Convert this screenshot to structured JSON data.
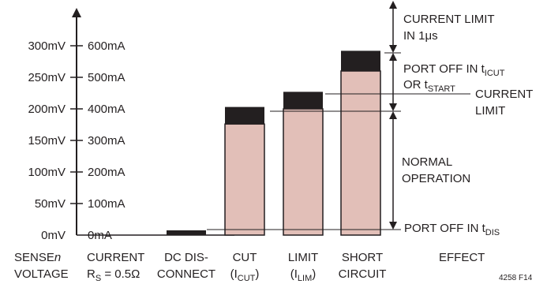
{
  "chart_data": {
    "type": "bar",
    "title": "",
    "ylim": [
      0,
      300
    ],
    "y_ticks_mv": [
      0,
      50,
      100,
      150,
      200,
      250,
      300
    ],
    "y_tick_labels_sense": [
      "0mV",
      "50mV",
      "100mV",
      "150mV",
      "200mV",
      "250mV",
      "300mV"
    ],
    "y_tick_labels_current": [
      "0mA",
      "100mA",
      "200mA",
      "300mA",
      "400mA",
      "500mA",
      "600mA"
    ],
    "categories": [
      {
        "line1": "DC DIS-",
        "line2": "CONNECT",
        "sub": ""
      },
      {
        "line1": "CUT",
        "line2": "(I",
        "sub": "CUT",
        "line2_end": ")"
      },
      {
        "line1": "LIMIT",
        "line2": "(I",
        "sub": "LIM",
        "line2_end": ")"
      },
      {
        "line1": "SHORT",
        "line2": "CIRCUIT",
        "sub": ""
      }
    ],
    "bars": [
      {
        "low": 0,
        "high": 0,
        "top": 7.5
      },
      {
        "low": 0,
        "high": 176,
        "top": 203
      },
      {
        "low": 0,
        "high": 200,
        "top": 227
      },
      {
        "low": 0,
        "high": 260,
        "top": 292
      }
    ],
    "colors": {
      "band": "#231f20",
      "fill": "#e2bfb8",
      "axis": "#231f20"
    },
    "column_headers": {
      "sense_line1": "SENSE",
      "sense_italic": "n",
      "sense_line2": "VOLTAGE",
      "current_line1": "CURRENT",
      "current_line2_prefix": "R",
      "current_line2_sub": "S",
      "current_line2_suffix": " = 0.5Ω",
      "effect": "EFFECT"
    },
    "effects": {
      "current_limit_1us_line1": "CURRENT LIMIT",
      "current_limit_1us_line2": "IN 1μs",
      "port_off_line1_prefix": "PORT OFF IN t",
      "port_off_line1_sub": "ICUT",
      "port_off_line2_prefix": "OR t",
      "port_off_line2_sub": "START",
      "current_limit_line1": "CURRENT",
      "current_limit_line2": "LIMIT",
      "normal_line1": "NORMAL",
      "normal_line2": "OPERATION",
      "port_off_dis_prefix": "PORT OFF IN t",
      "port_off_dis_sub": "DIS"
    },
    "thresholds_mv": {
      "dis": 7.5,
      "limit": 187.5,
      "cut_start": 212.5,
      "fast_limit": 275
    },
    "figure_id": "4258 F14"
  }
}
